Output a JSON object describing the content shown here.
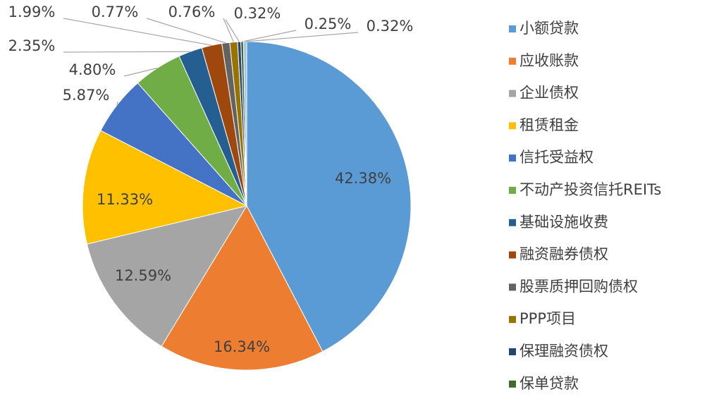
{
  "chart_data": {
    "type": "pie",
    "categories": [
      "小额贷款",
      "应收账款",
      "企业债权",
      "租赁租金",
      "信托受益权",
      "不动产投资信托REITs",
      "基础设施收费",
      "融资融券债权",
      "股票质押回购债权",
      "PPP项目",
      "保理融资债权",
      "保单贷款",
      null
    ],
    "values": [
      42.38,
      16.34,
      12.59,
      11.33,
      5.87,
      4.8,
      2.35,
      1.99,
      0.77,
      0.76,
      0.32,
      0.25,
      0.32
    ],
    "value_labels": [
      "42.38%",
      "16.34%",
      "12.59%",
      "11.33%",
      "5.87%",
      "4.80%",
      "2.35%",
      "1.99%",
      "0.77%",
      "0.76%",
      "0.32%",
      "0.25%",
      "0.32%"
    ],
    "colors": [
      "#5b9bd5",
      "#ed7d31",
      "#a5a5a5",
      "#ffc000",
      "#4472c4",
      "#70ad47",
      "#255e91",
      "#9e480e",
      "#636363",
      "#997300",
      "#264478",
      "#43682b",
      "#9dc3e6"
    ],
    "legend": "right"
  }
}
